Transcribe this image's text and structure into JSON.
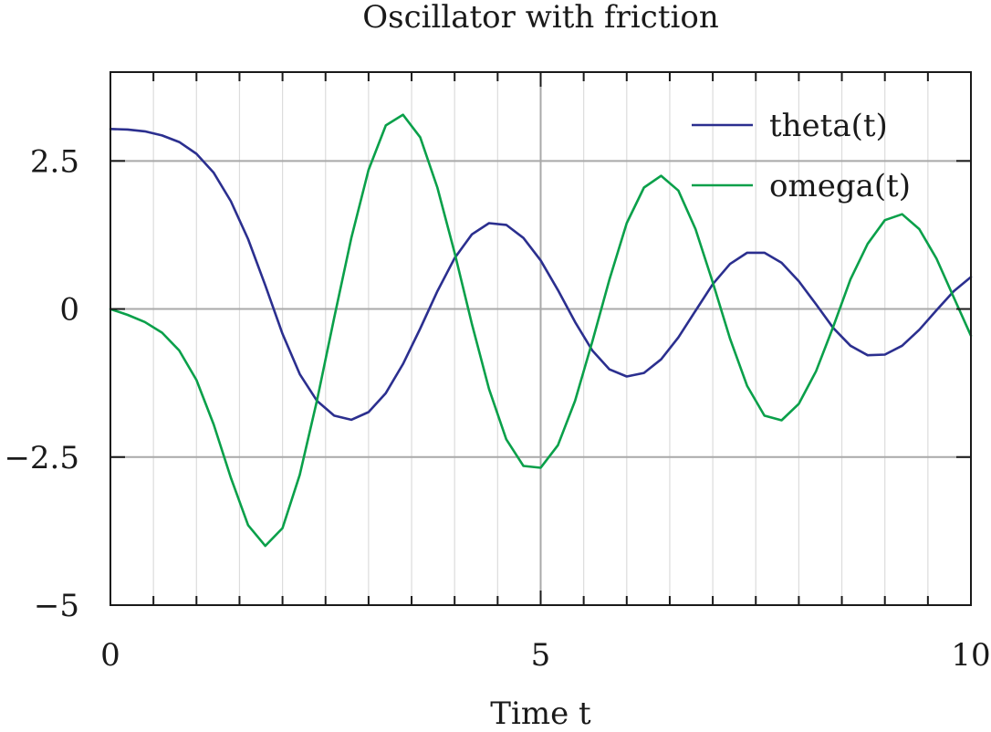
{
  "chart_data": {
    "type": "line",
    "title": "Oscillator with friction",
    "xlabel": "Time t",
    "ylabel": "",
    "xlim": [
      0,
      10
    ],
    "ylim": [
      -5,
      4
    ],
    "grid": true,
    "legend_position": "top-right",
    "x_ticks": [
      {
        "value": 0,
        "label": "0"
      },
      {
        "value": 5,
        "label": "5"
      },
      {
        "value": 10,
        "label": "10"
      }
    ],
    "y_ticks": [
      {
        "value": -5,
        "label": "−5"
      },
      {
        "value": -2.5,
        "label": "−2.5"
      },
      {
        "value": 0,
        "label": "0"
      },
      {
        "value": 2.5,
        "label": "2.5"
      }
    ],
    "x_minor_step": 0.5,
    "series": [
      {
        "name": "theta(t)",
        "color": "#2b2f8f",
        "x": [
          0,
          0.2,
          0.4,
          0.6,
          0.8,
          1.0,
          1.2,
          1.4,
          1.6,
          1.8,
          2.0,
          2.2,
          2.4,
          2.6,
          2.8,
          3.0,
          3.2,
          3.4,
          3.6,
          3.8,
          4.0,
          4.2,
          4.4,
          4.6,
          4.8,
          5.0,
          5.2,
          5.4,
          5.6,
          5.8,
          6.0,
          6.2,
          6.4,
          6.6,
          6.8,
          7.0,
          7.2,
          7.4,
          7.6,
          7.8,
          8.0,
          8.2,
          8.4,
          8.6,
          8.8,
          9.0,
          9.2,
          9.4,
          9.6,
          9.8,
          10.0
        ],
        "y": [
          3.04,
          3.03,
          3.0,
          2.93,
          2.82,
          2.62,
          2.3,
          1.82,
          1.18,
          0.4,
          -0.42,
          -1.1,
          -1.55,
          -1.8,
          -1.87,
          -1.74,
          -1.42,
          -0.93,
          -0.33,
          0.3,
          0.86,
          1.26,
          1.45,
          1.42,
          1.2,
          0.82,
          0.32,
          -0.22,
          -0.7,
          -1.02,
          -1.14,
          -1.08,
          -0.85,
          -0.48,
          -0.03,
          0.42,
          0.76,
          0.95,
          0.95,
          0.78,
          0.47,
          0.08,
          -0.32,
          -0.62,
          -0.78,
          -0.77,
          -0.62,
          -0.35,
          -0.02,
          0.3,
          0.54
        ]
      },
      {
        "name": "omega(t)",
        "color": "#0aa04a",
        "x": [
          0,
          0.2,
          0.4,
          0.6,
          0.8,
          1.0,
          1.2,
          1.4,
          1.6,
          1.8,
          2.0,
          2.2,
          2.4,
          2.6,
          2.8,
          3.0,
          3.2,
          3.4,
          3.6,
          3.8,
          4.0,
          4.2,
          4.4,
          4.6,
          4.8,
          5.0,
          5.2,
          5.4,
          5.6,
          5.8,
          6.0,
          6.2,
          6.4,
          6.6,
          6.8,
          7.0,
          7.2,
          7.4,
          7.6,
          7.8,
          8.0,
          8.2,
          8.4,
          8.6,
          8.8,
          9.0,
          9.2,
          9.4,
          9.6,
          9.8,
          10.0
        ],
        "y": [
          0,
          -0.1,
          -0.22,
          -0.4,
          -0.7,
          -1.2,
          -1.95,
          -2.85,
          -3.65,
          -4.0,
          -3.7,
          -2.8,
          -1.55,
          -0.15,
          1.2,
          2.35,
          3.1,
          3.28,
          2.9,
          2.05,
          0.95,
          -0.25,
          -1.35,
          -2.2,
          -2.65,
          -2.68,
          -2.3,
          -1.55,
          -0.55,
          0.5,
          1.45,
          2.05,
          2.25,
          2.0,
          1.35,
          0.45,
          -0.5,
          -1.3,
          -1.8,
          -1.88,
          -1.6,
          -1.05,
          -0.3,
          0.5,
          1.1,
          1.5,
          1.6,
          1.35,
          0.85,
          0.2,
          -0.45
        ]
      }
    ]
  }
}
